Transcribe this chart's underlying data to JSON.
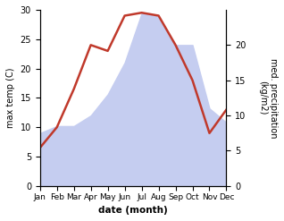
{
  "months": [
    "Jan",
    "Feb",
    "Mar",
    "Apr",
    "May",
    "Jun",
    "Jul",
    "Aug",
    "Sep",
    "Oct",
    "Nov",
    "Dec"
  ],
  "temp": [
    6.5,
    10.0,
    16.5,
    24.0,
    23.0,
    29.0,
    29.5,
    29.0,
    24.0,
    18.0,
    9.0,
    13.0
  ],
  "precip_right": [
    7.5,
    8.5,
    8.5,
    10.0,
    13.0,
    17.5,
    24.5,
    24.0,
    20.0,
    20.0,
    11.0,
    9.0
  ],
  "temp_color": "#c0392b",
  "precip_color": "#c5cdf0",
  "xlabel": "date (month)",
  "ylabel_left": "max temp (C)",
  "ylabel_right": "med. precipitation\n(kg/m2)",
  "background_color": "#ffffff",
  "left_ylim": [
    0,
    30
  ],
  "right_ylim": [
    0,
    25
  ],
  "left_yticks": [
    0,
    5,
    10,
    15,
    20,
    25,
    30
  ],
  "right_yticks": [
    0,
    5,
    10,
    15,
    20
  ],
  "right_yticklabels": [
    "0",
    "5",
    "10",
    "15",
    "20"
  ]
}
